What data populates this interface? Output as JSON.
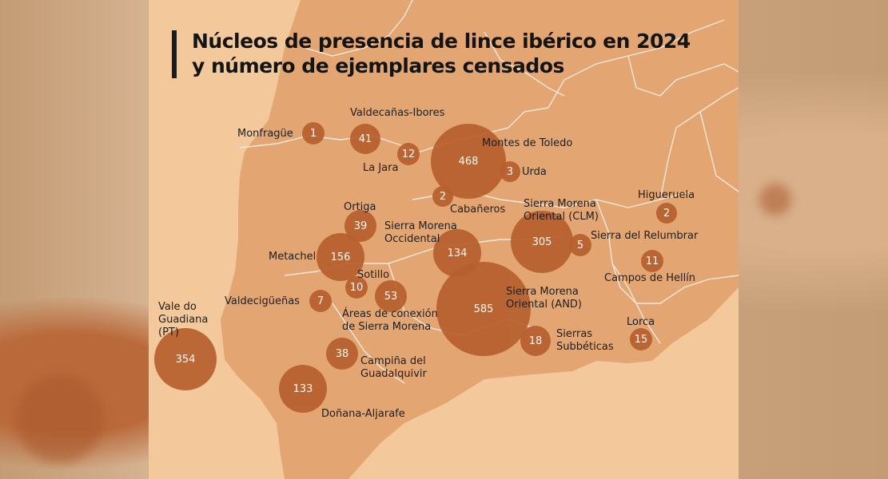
{
  "title": "Núcleos de presencia de lince ibérico en 2024\ny número de ejemplares censados",
  "colors": {
    "land": "#e3a673",
    "sea": "#f3c89a",
    "bubble": "#b7602f",
    "border": "#f7e9dc",
    "title_bar": "#1b1b1b"
  },
  "nuclei": [
    {
      "name": "Monfragüe",
      "count": "1"
    },
    {
      "name": "Valdecañas-Ibores",
      "count": "41"
    },
    {
      "name": "La Jara",
      "count": "12"
    },
    {
      "name": "Montes de Toledo",
      "count": "468"
    },
    {
      "name": "Urda",
      "count": "3"
    },
    {
      "name": "Cabañeros",
      "count": "2"
    },
    {
      "name": "Higueruela",
      "count": "2"
    },
    {
      "name": "Ortiga",
      "count": "39"
    },
    {
      "name": "Sierra Morena\nOccidental",
      "count": "134"
    },
    {
      "name": "Sierra Morena\nOriental (CLM)",
      "count": "305"
    },
    {
      "name": "Sierra del Relumbrar",
      "count": "5"
    },
    {
      "name": "Metachel",
      "count": "156"
    },
    {
      "name": "Campos de Hellín",
      "count": "11"
    },
    {
      "name": "Sotillo",
      "count": "10"
    },
    {
      "name": "Valdecigüeñas",
      "count": "7"
    },
    {
      "name": "",
      "count": "53"
    },
    {
      "name": "Vale do\nGuadiana\n(PT)",
      "count": "354"
    },
    {
      "name": "Áreas de conexión\nde Sierra Morena",
      "count": ""
    },
    {
      "name": "Sierra Morena\nOriental (AND)",
      "count": "585"
    },
    {
      "name": "Lorca",
      "count": "15"
    },
    {
      "name": "Sierras\nSubbéticas",
      "count": "18"
    },
    {
      "name": "Campiña del\nGuadalquivir",
      "count": "38"
    },
    {
      "name": "Doñana-Aljarafe",
      "count": "133"
    }
  ]
}
